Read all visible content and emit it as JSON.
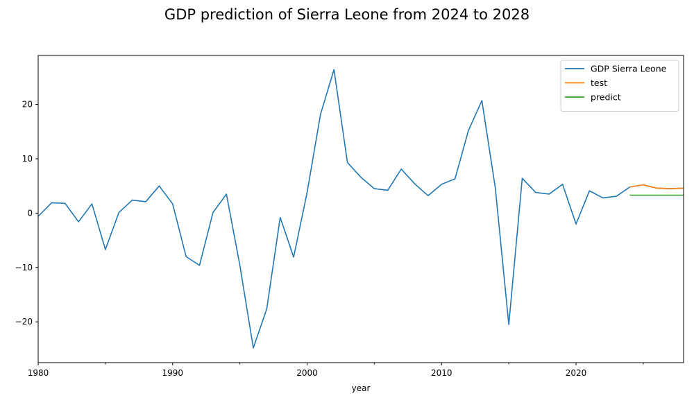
{
  "chart_data": {
    "type": "line",
    "title": "GDP prediction of Sierra Leone from 2024 to 2028",
    "xlabel": "year",
    "ylabel": "",
    "xlim": [
      1980,
      2028
    ],
    "ylim": [
      -27.5,
      29
    ],
    "x_ticks": [
      1980,
      1990,
      2000,
      2010,
      2020
    ],
    "x_tick_labels": [
      "1980",
      "1990",
      "2000",
      "2010",
      "2020"
    ],
    "x_minor_ticks": [
      1985,
      1995,
      2005,
      2015,
      2025
    ],
    "y_ticks": [
      -20,
      -10,
      0,
      10,
      20
    ],
    "y_tick_labels": [
      "−20",
      "−10",
      "0",
      "10",
      "20"
    ],
    "grid": false,
    "legend_position": "top-right",
    "series": [
      {
        "name": "GDP Sierra Leone",
        "color": "#1f77b4",
        "x": [
          1980,
          1981,
          1982,
          1983,
          1984,
          1985,
          1986,
          1987,
          1988,
          1989,
          1990,
          1991,
          1992,
          1993,
          1994,
          1995,
          1996,
          1997,
          1998,
          1999,
          2000,
          2001,
          2002,
          2003,
          2004,
          2005,
          2006,
          2007,
          2008,
          2009,
          2010,
          2011,
          2012,
          2013,
          2014,
          2015,
          2016,
          2017,
          2018,
          2019,
          2020,
          2021,
          2022,
          2023,
          2024,
          2025,
          2026,
          2027,
          2028
        ],
        "y": [
          -0.6,
          1.9,
          1.8,
          -1.6,
          1.7,
          -6.7,
          0.1,
          2.4,
          2.1,
          5.0,
          1.7,
          -8.0,
          -9.6,
          0.1,
          3.5,
          -9.6,
          -24.8,
          -17.6,
          -0.8,
          -8.1,
          3.8,
          18.2,
          26.4,
          9.3,
          6.6,
          4.5,
          4.2,
          8.1,
          5.4,
          3.2,
          5.3,
          6.3,
          15.2,
          20.7,
          4.6,
          -20.5,
          6.4,
          3.8,
          3.5,
          5.3,
          -2.0,
          4.1,
          2.8,
          3.1,
          4.8,
          5.2,
          4.6,
          4.5,
          4.6
        ]
      },
      {
        "name": "test",
        "color": "#ff7f0e",
        "x": [
          2024,
          2025,
          2026,
          2027,
          2028
        ],
        "y": [
          4.8,
          5.2,
          4.6,
          4.5,
          4.6
        ]
      },
      {
        "name": "predict",
        "color": "#2ca02c",
        "x": [
          2024,
          2025,
          2026,
          2027,
          2028
        ],
        "y": [
          3.3,
          3.3,
          3.3,
          3.3,
          3.3
        ]
      }
    ]
  }
}
